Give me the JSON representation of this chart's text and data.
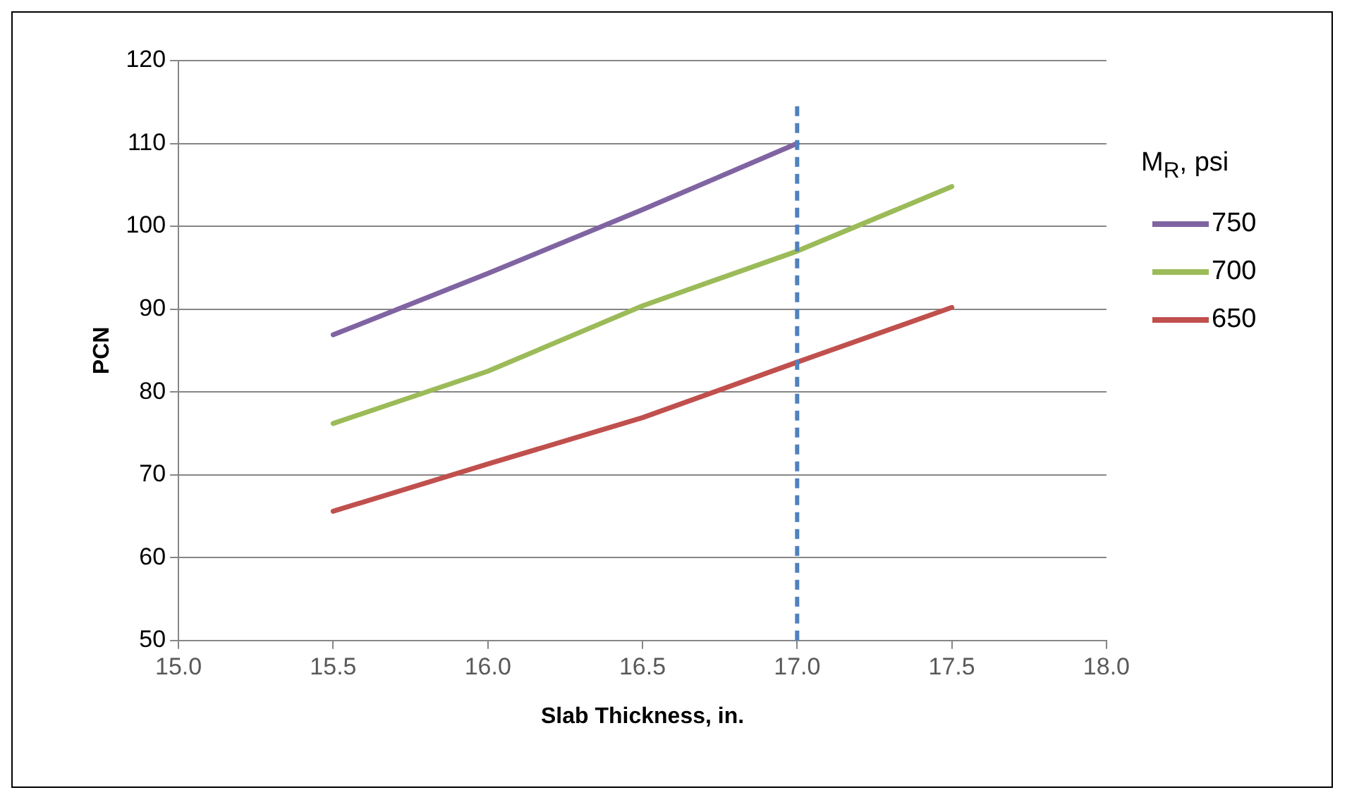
{
  "chart_data": {
    "type": "line",
    "xlabel": "Slab Thickness, in.",
    "ylabel": "PCN",
    "legend_title": "M$_{R}$, psi",
    "legend": "right",
    "grid": "y",
    "marker": "none",
    "line_style": "solid",
    "xlim": [
      15,
      18
    ],
    "xticks": [
      {
        "value": 15,
        "label": "15.0"
      },
      {
        "value": 15.5,
        "label": "15.5"
      },
      {
        "value": 16,
        "label": "16.0"
      },
      {
        "value": 16.5,
        "label": "16.5"
      },
      {
        "value": 17,
        "label": "17.0"
      },
      {
        "value": 17.5,
        "label": "17.5"
      },
      {
        "value": 18,
        "label": "18.0"
      }
    ],
    "ylim": [
      50,
      120
    ],
    "yticks": [
      50,
      60,
      70,
      80,
      90,
      100,
      110,
      120
    ],
    "series": [
      {
        "name": "750",
        "color": "#8064a2",
        "x": [
          15.5,
          16,
          16.5,
          17
        ],
        "values": [
          86.9,
          94.3,
          102,
          110
        ]
      },
      {
        "name": "700",
        "color": "#9bbb59",
        "x": [
          15.5,
          16,
          16.5,
          17,
          17.5
        ],
        "values": [
          76.2,
          82.5,
          90.4,
          97,
          104.8
        ]
      },
      {
        "name": "650",
        "color": "#c0504d",
        "x": [
          15.5,
          16,
          16.5,
          17,
          17.5
        ],
        "values": [
          65.6,
          71.3,
          76.9,
          83.6,
          90.2
        ]
      }
    ],
    "ref_lines": [
      {
        "axis": "x",
        "value": 17,
        "color": "#4f81bd",
        "line_style": "dashed"
      }
    ]
  }
}
